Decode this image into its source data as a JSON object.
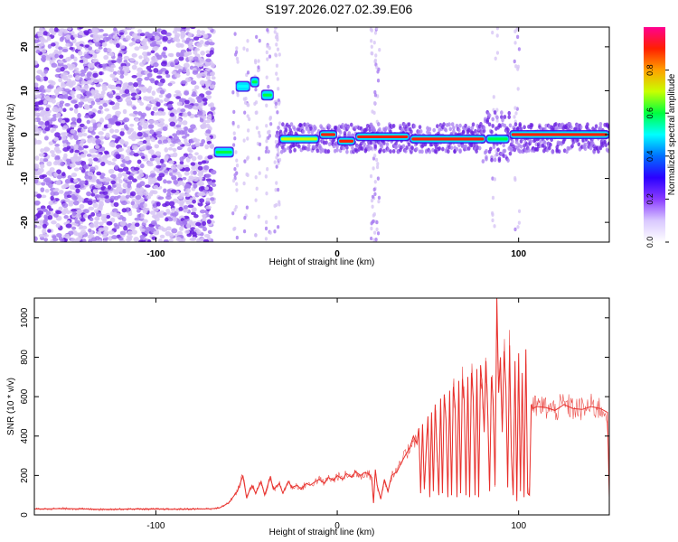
{
  "title": "S197.2026.027.02.39.E06",
  "colors": {
    "line": "#e8302c",
    "axis": "#000000",
    "scatter_light": "#d7c5f5",
    "scatter_mid": "#a77cf0",
    "scatter_dark": "#6a1fe0"
  },
  "colorbar": {
    "label": "Normalized spectral amplitude",
    "ticks": [
      "0.0",
      "0.2",
      "0.4",
      "0.6",
      "0.8"
    ],
    "tick_values": [
      0.0,
      0.2,
      0.4,
      0.6,
      0.8
    ],
    "range": [
      0,
      1
    ],
    "stops": [
      "#ffffff",
      "#d9c8ff",
      "#8a3cff",
      "#2b00ff",
      "#0070ff",
      "#00ffff",
      "#00ff40",
      "#c8ff00",
      "#ffa000",
      "#ff2000",
      "#ff0090"
    ]
  },
  "chart_data": [
    {
      "type": "heatmap",
      "title": "",
      "xlabel": "Height of straight line (km)",
      "ylabel": "Frequency (Hz)",
      "xlim": [
        -167,
        150
      ],
      "ylim": [
        -24.5,
        24.5
      ],
      "x_ticks": [
        -100,
        0,
        100
      ],
      "x_tick_labels": [
        "-100",
        "0",
        "100"
      ],
      "y_ticks": [
        -20,
        -10,
        0,
        10,
        20
      ],
      "y_tick_labels": [
        "-20",
        "-10",
        "0",
        "10",
        "20"
      ],
      "noise_region_km": [
        -167,
        -68
      ],
      "tone_segments": [
        {
          "x": [
            -68,
            -57
          ],
          "freq": -4,
          "amp": 0.55
        },
        {
          "x": [
            -56,
            -48
          ],
          "freq": 11,
          "amp": 0.5
        },
        {
          "x": [
            -48,
            -43
          ],
          "freq": 12,
          "amp": 0.55
        },
        {
          "x": [
            -42,
            -35
          ],
          "freq": 9,
          "amp": 0.55
        },
        {
          "x": [
            -32,
            -10
          ],
          "freq": -1,
          "amp": 0.7
        },
        {
          "x": [
            -10,
            0
          ],
          "freq": 0,
          "amp": 0.85
        },
        {
          "x": [
            0,
            10
          ],
          "freq": -1.5,
          "amp": 0.85
        },
        {
          "x": [
            10,
            40
          ],
          "freq": -0.5,
          "amp": 0.85
        },
        {
          "x": [
            40,
            82
          ],
          "freq": -1,
          "amp": 0.85
        },
        {
          "x": [
            82,
            95
          ],
          "freq": -1,
          "amp": 0.6
        },
        {
          "x": [
            95,
            150
          ],
          "freq": 0,
          "amp": 0.85
        }
      ]
    },
    {
      "type": "line",
      "title": "",
      "xlabel": "Height of straight line (km)",
      "ylabel": "SNR (10 * v/v)",
      "xlim": [
        -167,
        150
      ],
      "ylim": [
        0,
        1100
      ],
      "x_ticks": [
        -100,
        0,
        100
      ],
      "x_tick_labels": [
        "-100",
        "0",
        "100"
      ],
      "y_ticks": [
        0,
        200,
        400,
        600,
        800,
        1000
      ],
      "y_tick_labels": [
        "0",
        "200",
        "400",
        "600",
        "800",
        "1000"
      ],
      "x": [
        -167,
        -150,
        -130,
        -110,
        -90,
        -80,
        -70,
        -65,
        -60,
        -55,
        -52,
        -50,
        -47,
        -45,
        -42,
        -40,
        -37,
        -35,
        -32,
        -30,
        -27,
        -25,
        -22,
        -20,
        -17,
        -15,
        -12,
        -10,
        -7,
        -5,
        -2,
        0,
        3,
        5,
        8,
        10,
        13,
        15,
        17,
        19,
        20,
        21,
        22,
        24,
        26,
        28,
        30,
        33,
        35,
        38,
        40,
        42,
        44,
        45,
        46,
        47,
        48,
        50,
        51,
        52,
        53,
        54,
        56,
        57,
        58,
        59,
        60,
        61,
        62,
        63,
        64,
        65,
        66,
        67,
        68,
        69,
        70,
        71,
        72,
        73,
        74,
        75,
        76,
        77,
        78,
        79,
        80,
        81,
        82,
        83,
        84,
        85,
        86,
        87,
        88,
        89,
        90,
        91,
        92,
        93,
        94,
        95,
        96,
        97,
        98,
        99,
        100,
        101,
        102,
        103,
        104,
        105,
        106,
        107,
        108,
        110,
        115,
        120,
        125,
        130,
        135,
        140,
        145,
        149,
        150
      ],
      "y": [
        30,
        32,
        28,
        30,
        29,
        30,
        31,
        35,
        60,
        120,
        200,
        90,
        150,
        110,
        170,
        100,
        190,
        130,
        160,
        110,
        170,
        140,
        150,
        130,
        160,
        150,
        170,
        180,
        160,
        190,
        175,
        200,
        180,
        210,
        190,
        220,
        200,
        215,
        210,
        190,
        60,
        230,
        150,
        80,
        180,
        120,
        200,
        220,
        260,
        310,
        340,
        400,
        360,
        440,
        110,
        460,
        130,
        500,
        90,
        520,
        120,
        560,
        100,
        590,
        110,
        610,
        480,
        90,
        630,
        100,
        650,
        550,
        90,
        680,
        110,
        690,
        580,
        100,
        700,
        90,
        720,
        600,
        100,
        740,
        90,
        760,
        640,
        420,
        780,
        500,
        120,
        700,
        580,
        150,
        1100,
        620,
        800,
        420,
        830,
        650,
        140,
        860,
        300,
        100,
        780,
        70,
        820,
        120,
        720,
        90,
        840,
        110,
        100,
        560,
        540,
        550,
        545,
        530,
        560,
        540,
        535,
        550,
        540,
        520,
        90
      ]
    }
  ]
}
